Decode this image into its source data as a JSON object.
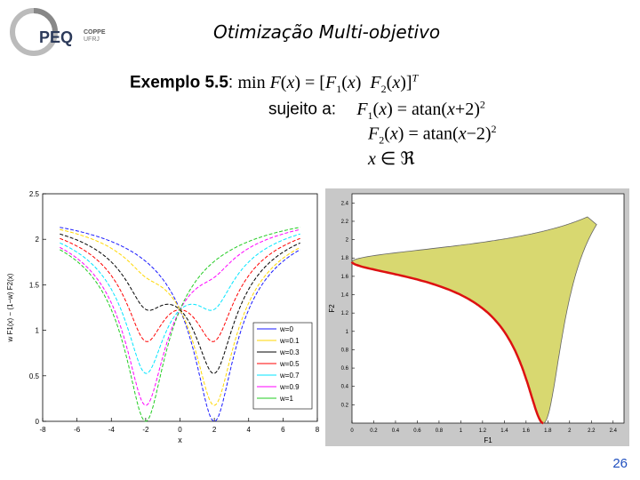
{
  "logo": {
    "main_text": "PEQ",
    "small_top": "COPPE",
    "small_bottom": "UFRJ"
  },
  "slide": {
    "title": "Otimização Multi-objetivo",
    "example_label": "Exemplo 5.5",
    "colon": ":",
    "line1_rest": "min F(x) = [F1(x)  F2(x)]T",
    "subject_to": "sujeito a:",
    "constraint1": "F1(x) = atan(x+2)2",
    "constraint2": "F2(x) = atan(x−2)2",
    "domain": "x ∈ ℜ",
    "page_number": "26"
  },
  "chart_data": [
    {
      "type": "line",
      "xlabel": "x",
      "ylabel": "w F1(x) − (1−w) F2(x)",
      "xlim": [
        -8,
        8
      ],
      "ylim": [
        0,
        2.5
      ],
      "xticks": [
        "-8",
        "-6",
        "-4",
        "-2",
        "0",
        "2",
        "4",
        "6",
        "8"
      ],
      "yticks": [
        "0",
        "0.5",
        "1",
        "1.5",
        "2",
        "2.5"
      ],
      "grid": false,
      "legend_position": "bottom-right",
      "series": [
        {
          "name": "w=0",
          "color": "#1a1aff",
          "w": 0.0
        },
        {
          "name": "w=0.1",
          "color": "#ffd700",
          "w": 0.1
        },
        {
          "name": "w=0.3",
          "color": "#000000",
          "w": 0.3
        },
        {
          "name": "w=0.5",
          "color": "#ff0000",
          "w": 0.5
        },
        {
          "name": "w=0.7",
          "color": "#00e5ff",
          "w": 0.7
        },
        {
          "name": "w=0.9",
          "color": "#ff00ff",
          "w": 0.9
        },
        {
          "name": "w=1",
          "color": "#22cc22",
          "w": 1.0
        }
      ]
    },
    {
      "type": "area",
      "xlabel": "F1",
      "ylabel": "F2",
      "xlim": [
        0,
        2.5
      ],
      "ylim": [
        0,
        2.5
      ],
      "xticks": [
        "0",
        "0.2",
        "0.4",
        "0.6",
        "0.8",
        "1",
        "1.2",
        "1.4",
        "1.6",
        "1.8",
        "2",
        "2.2",
        "2.4"
      ],
      "yticks": [
        "0.2",
        "0.4",
        "0.6",
        "0.8",
        "1",
        "1.2",
        "1.4",
        "1.6",
        "1.8",
        "2",
        "2.2",
        "2.4"
      ],
      "fill_color": "#d8d870",
      "pareto_color": "#dd1111",
      "background": "#c8c8c8"
    }
  ]
}
